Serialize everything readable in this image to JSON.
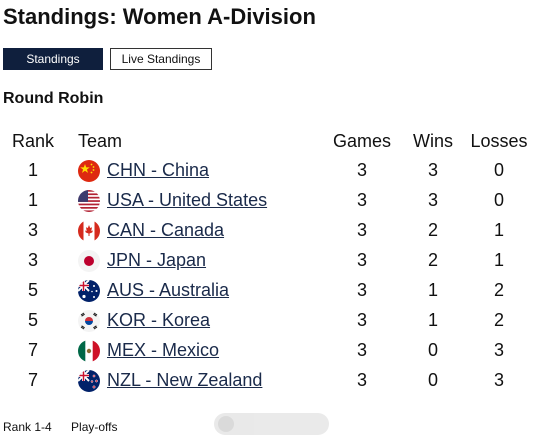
{
  "page": {
    "title": "Standings: Women A-Division"
  },
  "tabs": [
    {
      "label": "Standings",
      "active": true
    },
    {
      "label": "Live Standings",
      "active": false
    }
  ],
  "section": {
    "title": "Round Robin"
  },
  "table": {
    "headers": {
      "rank": "Rank",
      "team": "Team",
      "games": "Games",
      "wins": "Wins",
      "losses": "Losses"
    },
    "rows": [
      {
        "rank": "1",
        "team": "CHN - China",
        "flag": "china-flag-icon",
        "games": "3",
        "wins": "3",
        "losses": "0"
      },
      {
        "rank": "1",
        "team": "USA - United States",
        "flag": "usa-flag-icon",
        "games": "3",
        "wins": "3",
        "losses": "0"
      },
      {
        "rank": "3",
        "team": "CAN - Canada",
        "flag": "canada-flag-icon",
        "games": "3",
        "wins": "2",
        "losses": "1"
      },
      {
        "rank": "3",
        "team": "JPN - Japan",
        "flag": "japan-flag-icon",
        "games": "3",
        "wins": "2",
        "losses": "1"
      },
      {
        "rank": "5",
        "team": "AUS - Australia",
        "flag": "australia-flag-icon",
        "games": "3",
        "wins": "1",
        "losses": "2"
      },
      {
        "rank": "5",
        "team": "KOR - Korea",
        "flag": "korea-flag-icon",
        "games": "3",
        "wins": "1",
        "losses": "2"
      },
      {
        "rank": "7",
        "team": "MEX - Mexico",
        "flag": "mexico-flag-icon",
        "games": "3",
        "wins": "0",
        "losses": "3"
      },
      {
        "rank": "7",
        "team": "NZL - New Zealand",
        "flag": "new-zealand-flag-icon",
        "games": "3",
        "wins": "0",
        "losses": "3"
      }
    ]
  },
  "legend": {
    "rank_range": "Rank 1-4",
    "meaning": "Play-offs"
  },
  "colors": {
    "tab_active_bg": "#0f1f3d",
    "link": "#1a2a4a"
  }
}
